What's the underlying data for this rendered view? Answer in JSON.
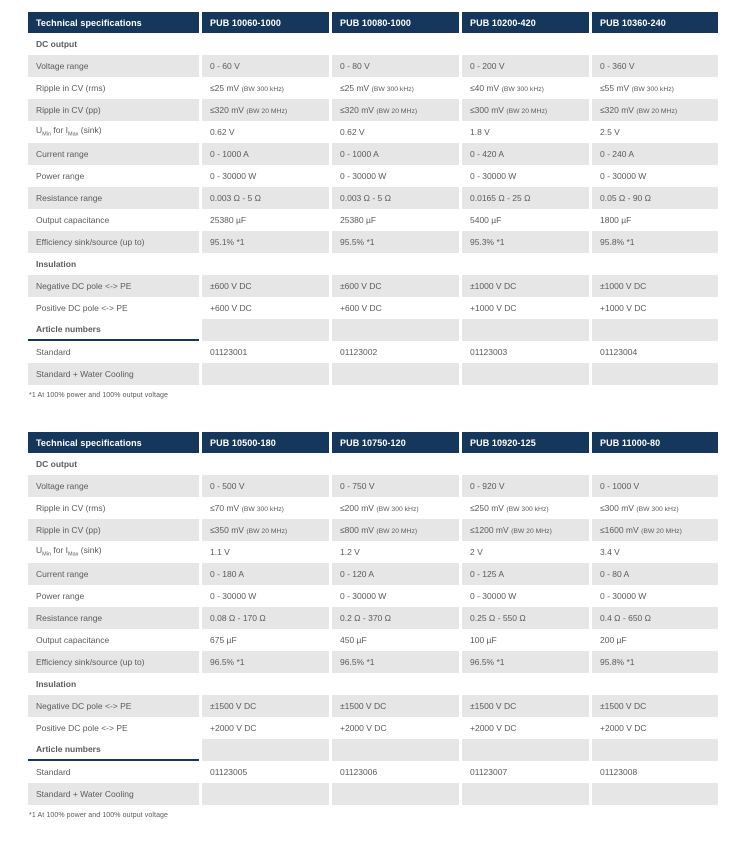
{
  "colors": {
    "header_bg": "#16375c",
    "section_text": "#0070b8",
    "stripe_bg": "#e6e6e6",
    "body_text": "#5a5b5d"
  },
  "tables": [
    {
      "header": [
        "Technical specifications",
        "PUB 10060-1000",
        "PUB 10080-1000",
        "PUB 10200-420",
        "PUB 10360-240"
      ],
      "rows": [
        {
          "type": "section",
          "label": "DC output",
          "striped": false
        },
        {
          "type": "data",
          "label": "Voltage range",
          "striped": true,
          "values": [
            "0 - 60 V",
            "0 - 80 V",
            "0 - 200 V",
            "0 - 360 V"
          ]
        },
        {
          "type": "data",
          "label": "Ripple in CV (rms)",
          "striped": false,
          "values": [
            {
              "v": "≤25 mV",
              "bw": "(BW 300 kHz)"
            },
            {
              "v": "≤25 mV",
              "bw": "(BW 300 kHz)"
            },
            {
              "v": "≤40 mV",
              "bw": "(BW 300 kHz)"
            },
            {
              "v": "≤55 mV",
              "bw": "(BW 300 kHz)"
            }
          ]
        },
        {
          "type": "data",
          "label": "Ripple in CV (pp)",
          "striped": true,
          "values": [
            {
              "v": "≤320 mV",
              "bw": "(BW 20 MHz)"
            },
            {
              "v": "≤320 mV",
              "bw": "(BW 20 MHz)"
            },
            {
              "v": "≤300 mV",
              "bw": "(BW 20 MHz)"
            },
            {
              "v": "≤320 mV",
              "bw": "(BW 20 MHz)"
            }
          ]
        },
        {
          "type": "data",
          "label_parts": [
            {
              "t": "U"
            },
            {
              "t": "Min",
              "sub": true
            },
            {
              "t": " for I"
            },
            {
              "t": "Max",
              "sub": true
            },
            {
              "t": " (sink)"
            }
          ],
          "striped": false,
          "values": [
            "0.62 V",
            "0.62 V",
            "1.8 V",
            "2.5 V"
          ]
        },
        {
          "type": "data",
          "label": "Current range",
          "striped": true,
          "values": [
            "0 - 1000 A",
            "0 - 1000 A",
            "0 - 420 A",
            "0 - 240 A"
          ]
        },
        {
          "type": "data",
          "label": "Power range",
          "striped": false,
          "values": [
            "0 - 30000 W",
            "0 - 30000 W",
            "0 - 30000 W",
            "0 - 30000 W"
          ]
        },
        {
          "type": "data",
          "label": "Resistance range",
          "striped": true,
          "values": [
            "0.003 Ω - 5 Ω",
            "0.003 Ω - 5 Ω",
            "0.0165 Ω - 25 Ω",
            "0.05 Ω - 90 Ω"
          ]
        },
        {
          "type": "data",
          "label": "Output capacitance",
          "striped": false,
          "values": [
            "25380 µF",
            "25380 µF",
            "5400 µF",
            "1800 µF"
          ]
        },
        {
          "type": "data",
          "label": "Efficiency sink/source (up to)",
          "striped": true,
          "values": [
            "95.1% *1",
            "95.5% *1",
            "95.3% *1",
            "95.8% *1"
          ]
        },
        {
          "type": "section",
          "label": "Insulation",
          "striped": false
        },
        {
          "type": "data",
          "label": "Negative DC pole <-> PE",
          "striped": true,
          "values": [
            "±600 V DC",
            "±600 V DC",
            "±1000 V DC",
            "±1000 V DC"
          ]
        },
        {
          "type": "data",
          "label": "Positive DC pole <-> PE",
          "striped": false,
          "values": [
            "+600 V DC",
            "+600 V DC",
            "+1000 V DC",
            "+1000 V DC"
          ]
        },
        {
          "type": "section",
          "label": "Article numbers",
          "striped": true
        },
        {
          "type": "data",
          "label": "Standard",
          "striped": false,
          "values": [
            "01123001",
            "01123002",
            "01123003",
            "01123004"
          ]
        },
        {
          "type": "data",
          "label": "Standard + Water Cooling",
          "striped": true,
          "values": [
            "",
            "",
            "",
            ""
          ]
        }
      ],
      "footnote": "*1 At 100% power and 100% output voltage"
    },
    {
      "header": [
        "Technical specifications",
        "PUB 10500-180",
        "PUB 10750-120",
        "PUB 10920-125",
        "PUB 11000-80"
      ],
      "rows": [
        {
          "type": "section",
          "label": "DC output",
          "striped": false
        },
        {
          "type": "data",
          "label": "Voltage range",
          "striped": true,
          "values": [
            "0 - 500 V",
            "0 - 750 V",
            "0 - 920 V",
            "0 - 1000 V"
          ]
        },
        {
          "type": "data",
          "label": "Ripple in CV (rms)",
          "striped": false,
          "values": [
            {
              "v": "≤70 mV",
              "bw": "(BW 300 kHz)"
            },
            {
              "v": "≤200 mV",
              "bw": "(BW 300 kHz)"
            },
            {
              "v": "≤250 mV",
              "bw": "(BW 300 kHz)"
            },
            {
              "v": "≤300 mV",
              "bw": "(BW 300 kHz)"
            }
          ]
        },
        {
          "type": "data",
          "label": "Ripple in CV (pp)",
          "striped": true,
          "values": [
            {
              "v": "≤350 mV",
              "bw": "(BW 20 MHz)"
            },
            {
              "v": "≤800 mV",
              "bw": "(BW 20 MHz)"
            },
            {
              "v": "≤1200 mV",
              "bw": "(BW 20 MHz)"
            },
            {
              "v": "≤1600 mV",
              "bw": "(BW 20 MHz)"
            }
          ]
        },
        {
          "type": "data",
          "label_parts": [
            {
              "t": "U"
            },
            {
              "t": "Min",
              "sub": true
            },
            {
              "t": " for I"
            },
            {
              "t": "Max",
              "sub": true
            },
            {
              "t": " (sink)"
            }
          ],
          "striped": false,
          "values": [
            "1.1 V",
            "1.2 V",
            "2 V",
            "3.4 V"
          ]
        },
        {
          "type": "data",
          "label": "Current range",
          "striped": true,
          "values": [
            "0 - 180 A",
            "0 - 120 A",
            "0 - 125 A",
            "0 - 80 A"
          ]
        },
        {
          "type": "data",
          "label": "Power range",
          "striped": false,
          "values": [
            "0 - 30000 W",
            "0 - 30000 W",
            "0 - 30000 W",
            "0 - 30000 W"
          ]
        },
        {
          "type": "data",
          "label": "Resistance range",
          "striped": true,
          "values": [
            "0.08 Ω - 170 Ω",
            "0.2 Ω - 370 Ω",
            "0.25 Ω - 550 Ω",
            "0.4 Ω - 650 Ω"
          ]
        },
        {
          "type": "data",
          "label": "Output capacitance",
          "striped": false,
          "values": [
            "675 µF",
            "450 µF",
            "100 µF",
            "200 µF"
          ]
        },
        {
          "type": "data",
          "label": "Efficiency sink/source (up to)",
          "striped": true,
          "values": [
            "96.5% *1",
            "96.5% *1",
            "96.5% *1",
            "95.8% *1"
          ]
        },
        {
          "type": "section",
          "label": "Insulation",
          "striped": false
        },
        {
          "type": "data",
          "label": "Negative DC pole <-> PE",
          "striped": true,
          "values": [
            "±1500 V DC",
            "±1500 V DC",
            "±1500 V DC",
            "±1500 V DC"
          ]
        },
        {
          "type": "data",
          "label": "Positive DC pole <-> PE",
          "striped": false,
          "values": [
            "+2000 V DC",
            "+2000 V DC",
            "+2000 V DC",
            "+2000 V DC"
          ]
        },
        {
          "type": "section",
          "label": "Article numbers",
          "striped": true
        },
        {
          "type": "data",
          "label": "Standard",
          "striped": false,
          "values": [
            "01123005",
            "01123006",
            "01123007",
            "01123008"
          ]
        },
        {
          "type": "data",
          "label": "Standard + Water Cooling",
          "striped": true,
          "values": [
            "",
            "",
            "",
            ""
          ]
        }
      ],
      "footnote": "*1 At 100% power and 100% output voltage"
    }
  ]
}
